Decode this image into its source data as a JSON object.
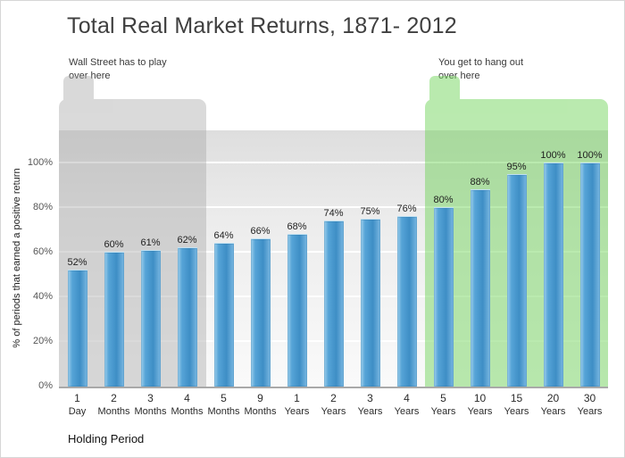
{
  "title": "Total Real Market Returns, 1871- 2012",
  "annotations": {
    "left": "Wall Street has to play\nover here",
    "right": "You get to hang out\nover here"
  },
  "chart_data": {
    "type": "bar",
    "title": "Total Real Market Returns, 1871- 2012",
    "categories": [
      {
        "num": "1",
        "unit": "Day"
      },
      {
        "num": "2",
        "unit": "Months"
      },
      {
        "num": "3",
        "unit": "Months"
      },
      {
        "num": "4",
        "unit": "Months"
      },
      {
        "num": "5",
        "unit": "Months"
      },
      {
        "num": "9",
        "unit": "Months"
      },
      {
        "num": "1",
        "unit": "Years"
      },
      {
        "num": "2",
        "unit": "Years"
      },
      {
        "num": "3",
        "unit": "Years"
      },
      {
        "num": "4",
        "unit": "Years"
      },
      {
        "num": "5",
        "unit": "Years"
      },
      {
        "num": "10",
        "unit": "Years"
      },
      {
        "num": "15",
        "unit": "Years"
      },
      {
        "num": "20",
        "unit": "Years"
      },
      {
        "num": "30",
        "unit": "Years"
      }
    ],
    "values": [
      52,
      60,
      61,
      62,
      64,
      66,
      68,
      74,
      75,
      76,
      80,
      88,
      95,
      100,
      100
    ],
    "value_labels": [
      "52%",
      "60%",
      "61%",
      "62%",
      "64%",
      "66%",
      "68%",
      "74%",
      "75%",
      "76%",
      "80%",
      "88%",
      "95%",
      "100%",
      "100%"
    ],
    "xlabel": "Holding Period",
    "ylabel": "% of periods that earned a positive return",
    "ylim": [
      0,
      100
    ],
    "yticks": [
      0,
      20,
      40,
      60,
      80,
      100
    ],
    "ytick_labels": [
      "0%",
      "20%",
      "40%",
      "60%",
      "80%",
      "100%"
    ],
    "grid": true,
    "legend": false,
    "bar_color": "#4596ce",
    "highlight_gray_color": "#a6a6a6",
    "highlight_green_color": "#6fd457",
    "highlight_gray_bars": [
      0,
      3
    ],
    "highlight_green_bars": [
      10,
      14
    ]
  }
}
